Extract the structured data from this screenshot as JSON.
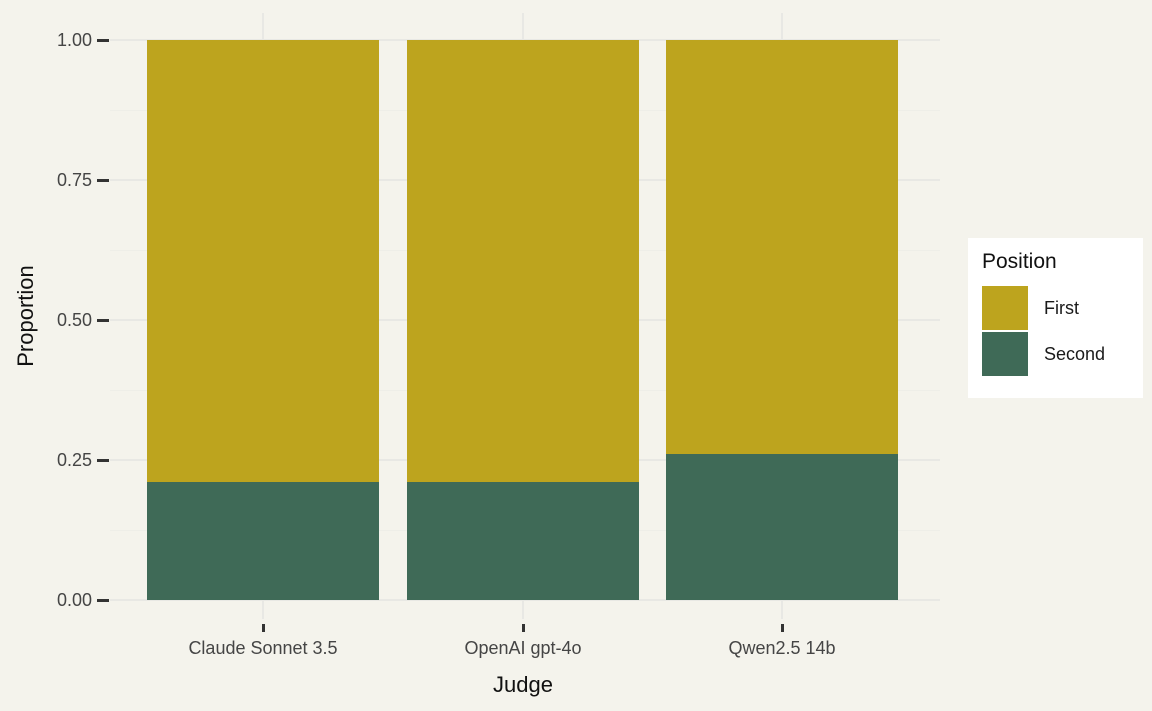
{
  "chart_data": {
    "type": "bar",
    "stacked": true,
    "title": "",
    "xlabel": "Judge",
    "ylabel": "Proportion",
    "categories": [
      "Claude Sonnet 3.5",
      "OpenAI gpt-4o",
      "Qwen2.5 14b"
    ],
    "series": [
      {
        "name": "First",
        "color": "#BDA41E",
        "values": [
          0.79,
          0.79,
          0.74
        ]
      },
      {
        "name": "Second",
        "color": "#3F6A57",
        "values": [
          0.21,
          0.21,
          0.26
        ]
      }
    ],
    "stack_order_bottom_to_top": [
      "Second",
      "First"
    ],
    "ylim": [
      0,
      1
    ],
    "yticks": [
      "0.00",
      "0.25",
      "0.50",
      "0.75",
      "1.00"
    ],
    "ytick_values": [
      0,
      0.25,
      0.5,
      0.75,
      1.0
    ],
    "minor_gridlines": [
      0.125,
      0.375,
      0.625,
      0.875
    ],
    "grid": "major and minor horizontal + major vertical, light lines on cream background",
    "legend": {
      "title": "Position",
      "position": "right",
      "entries": [
        "First",
        "Second"
      ]
    },
    "colors": {
      "background": "#F4F3EC",
      "gridline_major": "#E8E8E4",
      "gridline_minor": "#EEEEE8",
      "tick_mark": "#333333",
      "tick_label_text": "#454545",
      "title_text": "#111111",
      "legend_background": "#FFFFFF"
    }
  }
}
